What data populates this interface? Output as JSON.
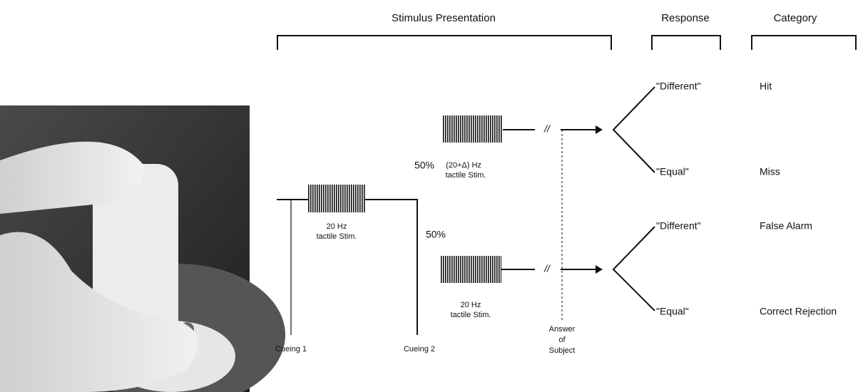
{
  "headers": {
    "stimulus": "Stimulus Presentation",
    "response": "Response",
    "category": "Category"
  },
  "first_stimulus": {
    "frequency": "20 Hz",
    "type": "tactile Stim."
  },
  "upper_branch": {
    "probability": "50%",
    "frequency": "(20+Δ) Hz",
    "type": "tactile Stim.",
    "responses": [
      "\"Different\"",
      "\"Equal\""
    ],
    "categories": [
      "Hit",
      "Miss"
    ]
  },
  "lower_branch": {
    "probability": "50%",
    "frequency": "20 Hz",
    "type": "tactile Stim.",
    "responses": [
      "\"Different\"",
      "\"Equal\""
    ],
    "categories": [
      "False Alarm",
      "Correct Rejection"
    ]
  },
  "cues": [
    "Cueing 1",
    "Cueing 2"
  ],
  "answer": [
    "Answer",
    "of",
    "Subject"
  ]
}
